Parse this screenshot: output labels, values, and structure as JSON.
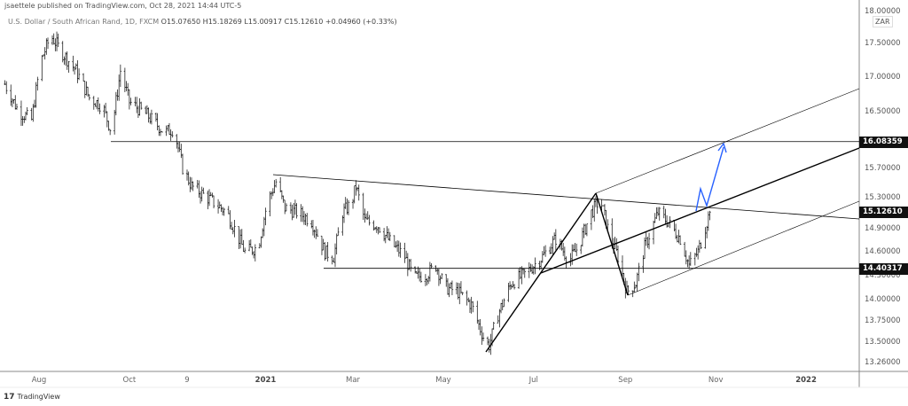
{
  "header": {
    "published": "jsaettele published on TradingView.com, Oct 28, 2021 14:44 UTC-5",
    "symbol": "U.S. Dollar / South African Rand, 1D, FXCM",
    "open": "O15.07650",
    "high": "H15.18269",
    "low": "L15.00917",
    "close": "C15.12610",
    "change": "+0.04960 (+0.33%)"
  },
  "currency": "ZAR",
  "footer": {
    "logo_mark": "17",
    "logo_text": "TradingView"
  },
  "chart_data": {
    "type": "ohlc",
    "scale": "log",
    "ylim": [
      13.26,
      18.0
    ],
    "y_ticks": [
      "18.00000",
      "17.50000",
      "17.00000",
      "16.50000",
      "15.70000",
      "15.30000",
      "14.90000",
      "14.60000",
      "14.30000",
      "14.00000",
      "13.75000",
      "13.50000",
      "13.26000"
    ],
    "x_ticks": [
      {
        "label": "Aug",
        "date": "2020-08-01"
      },
      {
        "label": "Oct",
        "date": "2020-10-01"
      },
      {
        "label": "9",
        "date": "2020-11-09"
      },
      {
        "label": "2021",
        "date": "2021-01-01",
        "bold": true
      },
      {
        "label": "Mar",
        "date": "2021-03-01"
      },
      {
        "label": "May",
        "date": "2021-05-01"
      },
      {
        "label": "Jul",
        "date": "2021-07-01"
      },
      {
        "label": "Sep",
        "date": "2021-09-01"
      },
      {
        "label": "Nov",
        "date": "2021-11-01"
      },
      {
        "label": "2022",
        "date": "2022-01-01",
        "bold": true
      }
    ],
    "price_tags": [
      {
        "label": "16.08359",
        "value": 16.08359
      },
      {
        "label": "15.12610",
        "value": 15.1261
      },
      {
        "label": "14.40317",
        "value": 14.40317
      }
    ],
    "close_path": [
      [
        "2020-07-09",
        16.91
      ],
      [
        "2020-07-18",
        16.52
      ],
      [
        "2020-07-27",
        16.39
      ],
      [
        "2020-08-02",
        17.24
      ],
      [
        "2020-08-09",
        17.64
      ],
      [
        "2020-08-17",
        17.37
      ],
      [
        "2020-08-26",
        17.11
      ],
      [
        "2020-09-04",
        16.71
      ],
      [
        "2020-09-13",
        16.59
      ],
      [
        "2020-09-19",
        16.21
      ],
      [
        "2020-09-25",
        17.11
      ],
      [
        "2020-10-01",
        16.65
      ],
      [
        "2020-10-13",
        16.46
      ],
      [
        "2020-10-25",
        16.21
      ],
      [
        "2020-10-31",
        16.27
      ],
      [
        "2020-11-06",
        15.72
      ],
      [
        "2020-11-12",
        15.47
      ],
      [
        "2020-11-24",
        15.3
      ],
      [
        "2020-12-06",
        15.12
      ],
      [
        "2020-12-18",
        14.61
      ],
      [
        "2020-12-27",
        14.67
      ],
      [
        "2021-01-02",
        15.24
      ],
      [
        "2021-01-08",
        15.53
      ],
      [
        "2021-01-14",
        15.18
      ],
      [
        "2021-01-23",
        15.12
      ],
      [
        "2021-02-01",
        15.01
      ],
      [
        "2021-02-10",
        14.61
      ],
      [
        "2021-02-16",
        14.55
      ],
      [
        "2021-02-22",
        15.12
      ],
      [
        "2021-02-28",
        15.24
      ],
      [
        "2021-03-03",
        15.47
      ],
      [
        "2021-03-09",
        15.01
      ],
      [
        "2021-03-18",
        14.95
      ],
      [
        "2021-03-27",
        14.72
      ],
      [
        "2021-04-05",
        14.55
      ],
      [
        "2021-04-11",
        14.28
      ],
      [
        "2021-04-20",
        14.33
      ],
      [
        "2021-04-26",
        14.44
      ],
      [
        "2021-05-02",
        14.17
      ],
      [
        "2021-05-11",
        14.11
      ],
      [
        "2021-05-20",
        13.95
      ],
      [
        "2021-05-29",
        13.52
      ],
      [
        "2021-06-01",
        13.47
      ],
      [
        "2021-06-07",
        13.84
      ],
      [
        "2021-06-16",
        14.22
      ],
      [
        "2021-06-25",
        14.33
      ],
      [
        "2021-07-07",
        14.55
      ],
      [
        "2021-07-16",
        14.78
      ],
      [
        "2021-07-25",
        14.5
      ],
      [
        "2021-07-31",
        14.67
      ],
      [
        "2021-08-09",
        15.12
      ],
      [
        "2021-08-15",
        15.3
      ],
      [
        "2021-08-21",
        14.84
      ],
      [
        "2021-08-27",
        14.55
      ],
      [
        "2021-09-02",
        14.11
      ],
      [
        "2021-09-08",
        14.22
      ],
      [
        "2021-09-14",
        14.67
      ],
      [
        "2021-09-23",
        15.12
      ],
      [
        "2021-09-29",
        15.01
      ],
      [
        "2021-10-08",
        14.78
      ],
      [
        "2021-10-14",
        14.44
      ],
      [
        "2021-10-20",
        14.61
      ],
      [
        "2021-10-28",
        15.1261
      ]
    ]
  },
  "colors": {
    "bars": "#222222",
    "lines": "#000000",
    "projection": "#2962ff",
    "tag_bg": "#111111"
  }
}
